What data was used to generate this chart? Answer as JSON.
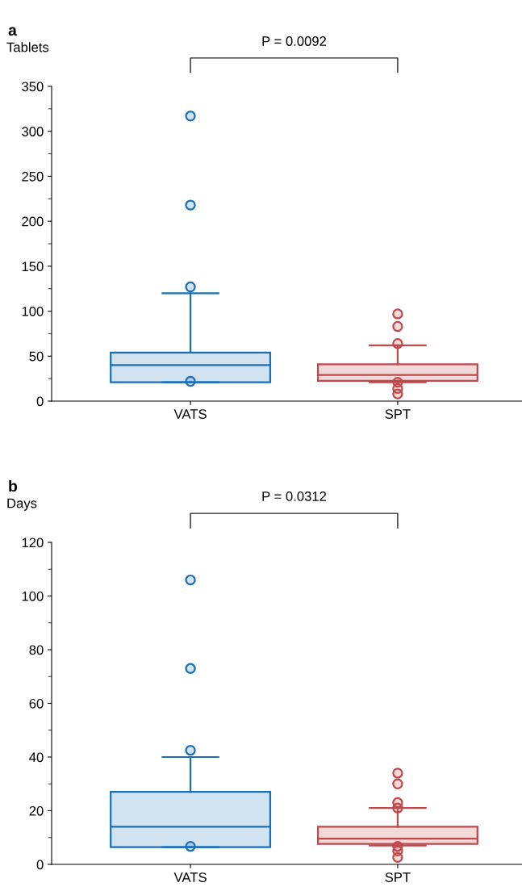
{
  "chart_data": [
    {
      "type": "box",
      "title": "a",
      "ylabel": "Tablets",
      "categories": [
        "VATS",
        "SPT"
      ],
      "colors": [
        "#1a6fb3",
        "#c0474a"
      ],
      "boxes": [
        {
          "low": 21,
          "q1": 21,
          "median": 40,
          "q3": 54,
          "high": 120,
          "outliers": [
            317,
            218,
            127,
            22
          ]
        },
        {
          "low": 21,
          "q1": 22.5,
          "median": 29,
          "q3": 41,
          "high": 62,
          "outliers": [
            97,
            83,
            64,
            21,
            14,
            8
          ]
        }
      ],
      "ylim": [
        0,
        350
      ],
      "yticks": [
        0,
        50,
        100,
        150,
        200,
        250,
        300,
        350
      ],
      "annotations": [
        "P = 0.0092"
      ]
    },
    {
      "type": "box",
      "title": "b",
      "ylabel": "Days",
      "categories": [
        "VATS",
        "SPT"
      ],
      "colors": [
        "#1a6fb3",
        "#c0474a"
      ],
      "boxes": [
        {
          "low": 6.4,
          "q1": 6.4,
          "median": 14,
          "q3": 27,
          "high": 40,
          "outliers": [
            106,
            73,
            42.5,
            6.7
          ]
        },
        {
          "low": 7,
          "q1": 7.6,
          "median": 9.6,
          "q3": 14,
          "high": 21,
          "outliers": [
            34,
            30,
            23,
            21,
            6.7,
            5,
            2.6
          ]
        }
      ],
      "ylim": [
        0,
        120
      ],
      "yticks": [
        0,
        20,
        40,
        60,
        80,
        100,
        120
      ],
      "annotations": [
        "P = 0.0312"
      ]
    }
  ]
}
